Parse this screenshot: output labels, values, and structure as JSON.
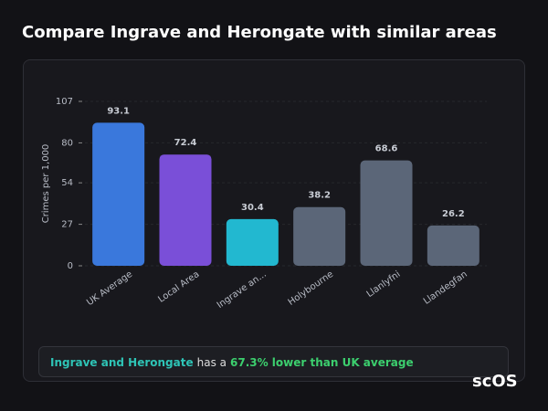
{
  "title": "Compare Ingrave and Herongate with similar areas",
  "chart_data": {
    "type": "bar",
    "y_label": "Crimes per 1,000",
    "categories": [
      "UK Average",
      "Local Area",
      "Ingrave an...",
      "Holybourne",
      "Llanlyfni",
      "Llandegfan"
    ],
    "values": [
      93.1,
      72.4,
      30.4,
      38.2,
      68.6,
      26.2
    ],
    "colors": [
      "#3a78dc",
      "#7a4fd8",
      "#22b8d0",
      "#5b6678",
      "#5b6678",
      "#5b6678"
    ],
    "ylim": [
      0,
      107
    ],
    "yticks": [
      0,
      27,
      54,
      80,
      107
    ],
    "grid": true
  },
  "footer": {
    "area": "Ingrave and Herongate",
    "middle": "has a",
    "highlight": "67.3% lower than UK average"
  },
  "logo": "scOS"
}
